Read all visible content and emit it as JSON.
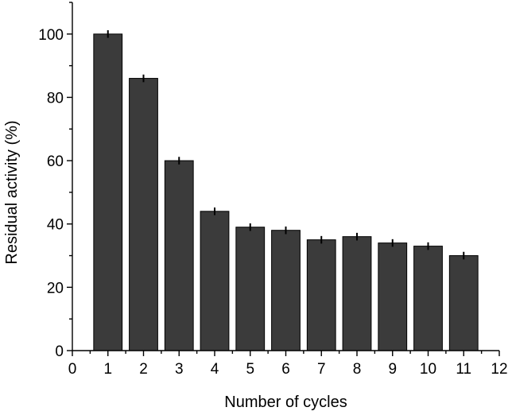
{
  "chart_data": {
    "type": "bar",
    "title": "",
    "xlabel": "Number of cycles",
    "ylabel": "Residual activity (%)",
    "x": [
      1,
      2,
      3,
      4,
      5,
      6,
      7,
      8,
      9,
      10,
      11
    ],
    "values": [
      100,
      86,
      60,
      44,
      39,
      38,
      35,
      36,
      34,
      33,
      30
    ],
    "errors": [
      1.2,
      1.2,
      1.2,
      1.2,
      1.2,
      1.2,
      1.2,
      1.2,
      1.2,
      1.2,
      1.2
    ],
    "xlim": [
      0,
      12
    ],
    "ylim": [
      0,
      110
    ],
    "xticks": [
      0,
      1,
      2,
      3,
      4,
      5,
      6,
      7,
      8,
      9,
      10,
      11,
      12
    ],
    "yticks": [
      0,
      20,
      40,
      60,
      80,
      100
    ],
    "grid": false,
    "legend": "none",
    "colors": {
      "bar_fill": "#3b3b3b",
      "bar_edge": "#000000",
      "axis": "#000000"
    }
  }
}
